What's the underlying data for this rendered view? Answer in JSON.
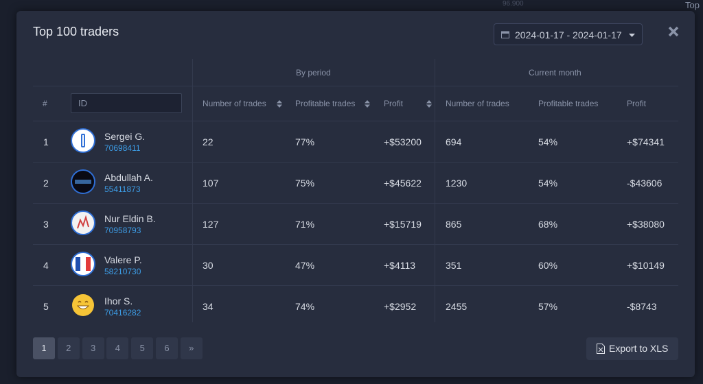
{
  "background": {
    "top_label": "Top",
    "price_label": "96.900"
  },
  "modal": {
    "title": "Top 100 traders",
    "date_range": "2024-01-17 - 2024-01-17"
  },
  "table": {
    "group_headers": [
      "By period",
      "Current month"
    ],
    "columns": [
      "#",
      "ID",
      "Number of trades",
      "Profitable trades",
      "Profit",
      "Number of trades",
      "Profitable trades",
      "Profit"
    ],
    "rows": [
      {
        "rank": "1",
        "name": "Sergei G.",
        "id": "70698411",
        "cells": [
          "22",
          "77%",
          "+$53200",
          "694",
          "54%",
          "+$74341"
        ]
      },
      {
        "rank": "2",
        "name": "Abdullah A.",
        "id": "55411873",
        "cells": [
          "107",
          "75%",
          "+$45622",
          "1230",
          "54%",
          "-$43606"
        ]
      },
      {
        "rank": "3",
        "name": "Nur Eldin B.",
        "id": "70958793",
        "cells": [
          "127",
          "71%",
          "+$15719",
          "865",
          "68%",
          "+$38080"
        ]
      },
      {
        "rank": "4",
        "name": "Valere P.",
        "id": "58210730",
        "cells": [
          "30",
          "47%",
          "+$4113",
          "351",
          "60%",
          "+$10149"
        ]
      },
      {
        "rank": "5",
        "name": "Ihor S.",
        "id": "70416282",
        "cells": [
          "34",
          "74%",
          "+$2952",
          "2455",
          "57%",
          "-$8743"
        ]
      }
    ]
  },
  "pagination": [
    "1",
    "2",
    "3",
    "4",
    "5",
    "6",
    "»"
  ],
  "export_button": "Export to XLS"
}
